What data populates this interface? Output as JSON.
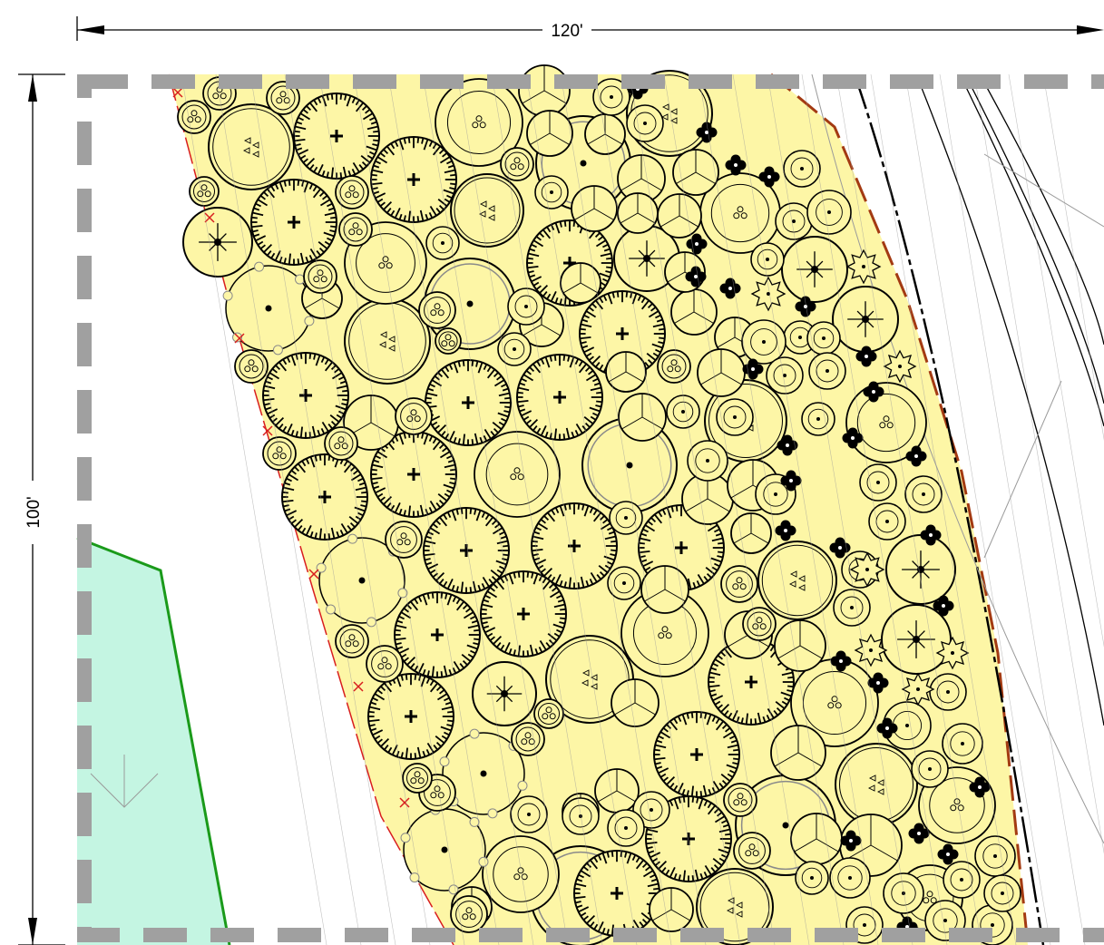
{
  "dimensions": {
    "width_label": "120'",
    "height_label": "100'"
  },
  "colors": {
    "planting_bed": "#fdf6a6",
    "green_zone_fill": "#c4f5e2",
    "green_zone_stroke": "#1a9a1a",
    "red_bed_edge": "#d81e1e",
    "brown_bed_edge": "#a33a12",
    "site_boundary": "#a0a0a0",
    "plant_outline": "#000000"
  },
  "legend_symbols": [
    "plus-hatched-shrub",
    "three-circle-perennial",
    "triangle-tree",
    "dot-tree",
    "cross-leaf-grass",
    "star-shrub",
    "wedge-groundcover",
    "sunburst-shrub"
  ]
}
